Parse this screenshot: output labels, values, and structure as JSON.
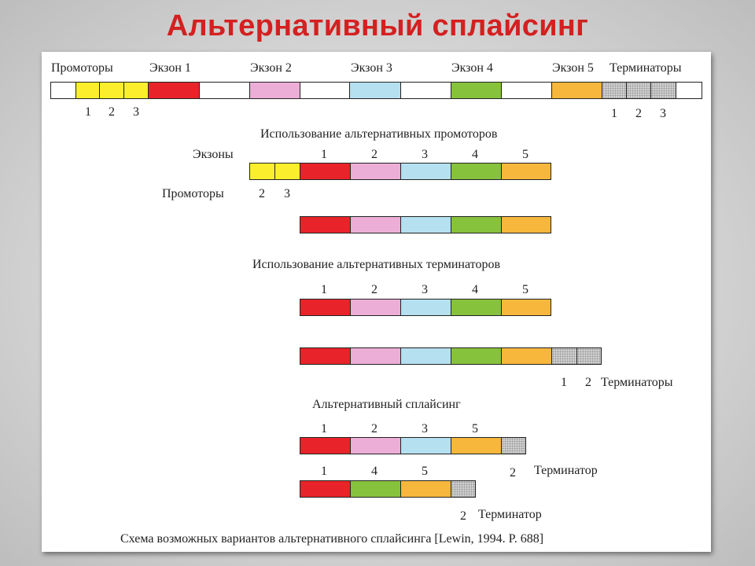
{
  "slide": {
    "title": "Альтернативный сплайсинг"
  },
  "header_labels": {
    "promoters": "Промоторы",
    "exon1": "Экзон 1",
    "exon2": "Экзон 2",
    "exon3": "Экзон 3",
    "exon4": "Экзон 4",
    "exon5": "Экзон 5",
    "terminators": "Терминаторы"
  },
  "gene_row_numbers": {
    "promoters": [
      "1",
      "2",
      "3"
    ],
    "terminators": [
      "1",
      "2",
      "3"
    ]
  },
  "section_promoters": {
    "title": "Использование альтернативных промоторов",
    "exons_label": "Экзоны",
    "exon_numbers": [
      "1",
      "2",
      "3",
      "4",
      "5"
    ],
    "promoters_label": "Промоторы",
    "promoter_numbers": [
      "2",
      "3"
    ]
  },
  "section_terminators": {
    "title": "Использование альтернативных терминаторов",
    "exon_numbers": [
      "1",
      "2",
      "3",
      "4",
      "5"
    ],
    "terminator_numbers": [
      "1",
      "2"
    ],
    "terminators_label": "Терминаторы"
  },
  "section_splicing": {
    "title": "Альтернативный сплайсинг",
    "row1_numbers": [
      "1",
      "2",
      "3",
      "5"
    ],
    "row2_numbers": [
      "1",
      "4",
      "5"
    ],
    "row1_terminator_number": "2",
    "row2_terminator_number": "2",
    "terminator_label": "Терминатор"
  },
  "caption": "Схема возможных вариантов альтернативного сплайсинга [Lewin, 1994. P. 688]",
  "colors": {
    "exon1": "#e8242a",
    "exon2": "#ecaed6",
    "exon3": "#b4e0f0",
    "exon4": "#86c23c",
    "exon5": "#f6b73c",
    "promoter": "#fbee2c",
    "terminator": "#d0d0d0"
  }
}
